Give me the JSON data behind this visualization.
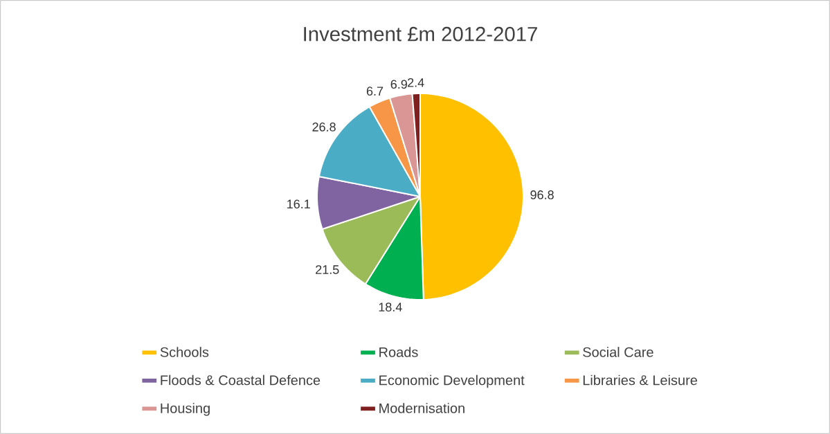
{
  "chart_data": {
    "type": "pie",
    "title": "Investment £m 2012-2017",
    "categories": [
      "Schools",
      "Roads",
      "Social Care",
      "Floods & Coastal Defence",
      "Economic Development",
      "Libraries & Leisure",
      "Housing",
      "Modernisation"
    ],
    "values": [
      96.8,
      18.4,
      21.5,
      16.1,
      26.8,
      6.7,
      6.9,
      2.4
    ],
    "colors": [
      "#ffc000",
      "#00b050",
      "#9bbb59",
      "#8064a2",
      "#4bacc6",
      "#f79646",
      "#d99694",
      "#7f1f1f"
    ],
    "data_labels": true,
    "legend": "bottom"
  }
}
